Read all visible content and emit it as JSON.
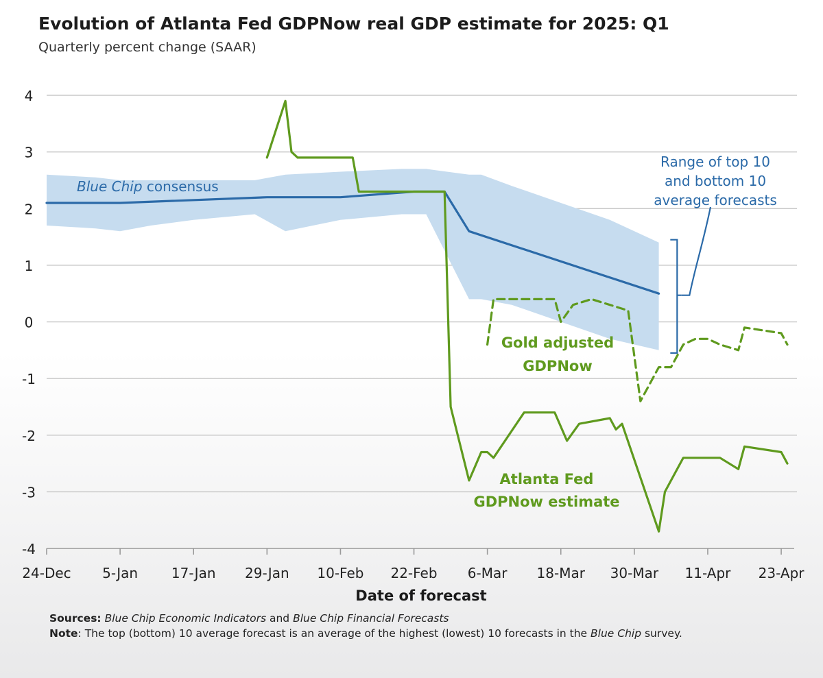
{
  "chart_data": {
    "type": "line",
    "title": "Evolution of Atlanta Fed GDPNow real GDP estimate for 2025: Q1",
    "subtitle": "Quarterly percent change (SAAR)",
    "xlabel": "Date of forecast",
    "ylabel": "",
    "ylim": [
      -4,
      4
    ],
    "yticks": [
      4,
      3,
      2,
      1,
      0,
      -1,
      -2,
      -3,
      -4
    ],
    "xlim": [
      "2024-12-24",
      "2025-04-24"
    ],
    "xticks": [
      {
        "date": "2024-12-24",
        "label": "24-Dec"
      },
      {
        "date": "2025-01-05",
        "label": "5-Jan"
      },
      {
        "date": "2025-01-17",
        "label": "17-Jan"
      },
      {
        "date": "2025-01-29",
        "label": "29-Jan"
      },
      {
        "date": "2025-02-10",
        "label": "10-Feb"
      },
      {
        "date": "2025-02-22",
        "label": "22-Feb"
      },
      {
        "date": "2025-03-06",
        "label": "6-Mar"
      },
      {
        "date": "2025-03-18",
        "label": "18-Mar"
      },
      {
        "date": "2025-03-30",
        "label": "30-Mar"
      },
      {
        "date": "2025-04-11",
        "label": "11-Apr"
      },
      {
        "date": "2025-04-23",
        "label": "23-Apr"
      }
    ],
    "grid": true,
    "colors": {
      "consensus": "#2b6aa8",
      "band": "#c6dcef",
      "gdpnow": "#5f9a1e",
      "gold": "#5f9a1e",
      "annotation": "#2b6aa8",
      "grid": "#c9c9c9"
    },
    "band": {
      "name": "Range of top 10 and bottom 10 average forecasts",
      "x": [
        "2024-12-24",
        "2025-01-01",
        "2025-01-05",
        "2025-01-10",
        "2025-01-17",
        "2025-01-22",
        "2025-01-27",
        "2025-02-01",
        "2025-02-10",
        "2025-02-20",
        "2025-02-24",
        "2025-03-03",
        "2025-03-05",
        "2025-03-10",
        "2025-03-18",
        "2025-03-26",
        "2025-04-03"
      ],
      "upper": [
        2.6,
        2.55,
        2.5,
        2.5,
        2.5,
        2.5,
        2.5,
        2.6,
        2.65,
        2.7,
        2.7,
        2.6,
        2.6,
        2.4,
        2.1,
        1.8,
        1.4
      ],
      "lower": [
        1.7,
        1.65,
        1.6,
        1.7,
        1.8,
        1.85,
        1.9,
        1.6,
        1.8,
        1.9,
        1.9,
        0.4,
        0.4,
        0.3,
        0.0,
        -0.3,
        -0.5
      ]
    },
    "series": [
      {
        "name": "Blue Chip consensus",
        "style": "solid",
        "x": [
          "2024-12-24",
          "2025-01-05",
          "2025-01-29",
          "2025-02-01",
          "2025-02-10",
          "2025-02-22",
          "2025-02-27",
          "2025-03-03",
          "2025-04-03"
        ],
        "values": [
          2.1,
          2.1,
          2.2,
          2.2,
          2.2,
          2.3,
          2.3,
          1.6,
          0.5
        ]
      },
      {
        "name": "Atlanta Fed GDPNow estimate",
        "style": "solid",
        "x": [
          "2025-01-29",
          "2025-02-01",
          "2025-02-02",
          "2025-02-03",
          "2025-02-07",
          "2025-02-12",
          "2025-02-13",
          "2025-02-14",
          "2025-02-18",
          "2025-02-27",
          "2025-02-28",
          "2025-03-03",
          "2025-03-05",
          "2025-03-06",
          "2025-03-07",
          "2025-03-12",
          "2025-03-14",
          "2025-03-17",
          "2025-03-19",
          "2025-03-21",
          "2025-03-26",
          "2025-03-27",
          "2025-03-28",
          "2025-04-03",
          "2025-04-04",
          "2025-04-05",
          "2025-04-07",
          "2025-04-13",
          "2025-04-16",
          "2025-04-17",
          "2025-04-23",
          "2025-04-24"
        ],
        "values": [
          2.9,
          3.9,
          3.0,
          2.9,
          2.9,
          2.9,
          2.3,
          2.3,
          2.3,
          2.3,
          -1.5,
          -2.8,
          -2.3,
          -2.3,
          -2.4,
          -1.6,
          -1.6,
          -1.6,
          -2.1,
          -1.8,
          -1.7,
          -1.9,
          -1.8,
          -3.7,
          -3.0,
          -2.8,
          -2.4,
          -2.4,
          -2.6,
          -2.2,
          -2.3,
          -2.5
        ]
      },
      {
        "name": "Gold adjusted GDPNow",
        "style": "dashed",
        "x": [
          "2025-03-06",
          "2025-03-07",
          "2025-03-10",
          "2025-03-13",
          "2025-03-17",
          "2025-03-18",
          "2025-03-20",
          "2025-03-23",
          "2025-03-26",
          "2025-03-29",
          "2025-03-31",
          "2025-04-03",
          "2025-04-05",
          "2025-04-07",
          "2025-04-09",
          "2025-04-11",
          "2025-04-13",
          "2025-04-16",
          "2025-04-17",
          "2025-04-23",
          "2025-04-24"
        ],
        "values": [
          -0.4,
          0.4,
          0.4,
          0.4,
          0.4,
          0.0,
          0.3,
          0.4,
          0.3,
          0.2,
          -1.4,
          -0.8,
          -0.8,
          -0.4,
          -0.3,
          -0.3,
          -0.4,
          -0.5,
          -0.1,
          -0.2,
          -0.4
        ]
      }
    ],
    "annotations": {
      "consensus_label": "Blue Chip consensus",
      "range_label_lines": [
        "Range of top 10",
        "and bottom 10",
        "average forecasts"
      ],
      "gold_label_lines": [
        "Gold adjusted",
        "GDPNow"
      ],
      "gdpnow_label_lines": [
        "Atlanta Fed",
        "GDPNow estimate"
      ]
    }
  },
  "footnotes": {
    "sources_label": "Sources:",
    "sources_text_1": "Blue Chip Economic Indicators",
    "sources_text_and": " and ",
    "sources_text_2": "Blue Chip Financial Forecasts",
    "note_label": "Note",
    "note_text": ": The top (bottom) 10 average forecast is an average of the highest (lowest) 10 forecasts in the ",
    "note_italic": "Blue Chip",
    "note_end": " survey."
  }
}
